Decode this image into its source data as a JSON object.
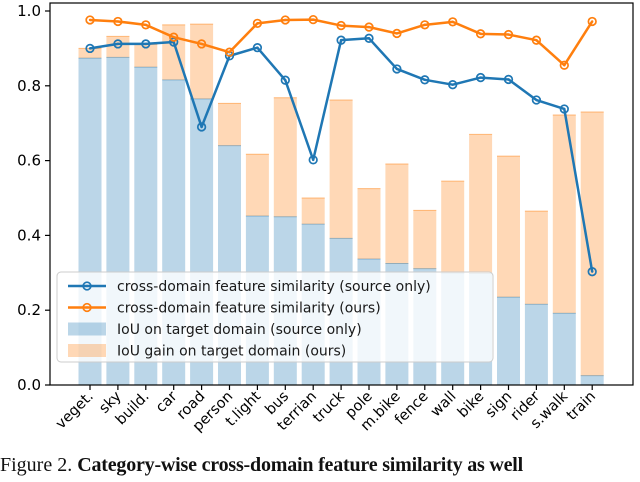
{
  "figure": {
    "caption_prefix": "Figure 2.",
    "caption_text": "Category-wise cross-domain feature similarity as well"
  },
  "chart_data": {
    "type": "line+stacked-bar",
    "title": "",
    "xlabel": "",
    "ylabel": "",
    "ylim": [
      0.0,
      1.02
    ],
    "yticks": [
      "0.0",
      "0.2",
      "0.4",
      "0.6",
      "0.8",
      "1.0"
    ],
    "grid": false,
    "legend_position": "center-left",
    "categories": [
      "veget.",
      "sky",
      "build.",
      "car",
      "road",
      "person",
      "t.light",
      "bus",
      "terrian",
      "truck",
      "pole",
      "m.bike",
      "fence",
      "wall",
      "bike",
      "sign",
      "rider",
      "s.walk",
      "train"
    ],
    "series": [
      {
        "name": "cross-domain feature similarity (source only)",
        "type": "line",
        "color": "#1f77b4",
        "values": [
          0.9,
          0.912,
          0.912,
          0.917,
          0.69,
          0.88,
          0.902,
          0.815,
          0.602,
          0.922,
          0.927,
          0.845,
          0.816,
          0.803,
          0.822,
          0.817,
          0.762,
          0.738,
          0.303
        ]
      },
      {
        "name": "cross-domain feature similarity (ours)",
        "type": "line",
        "color": "#ff7f0e",
        "values": [
          0.976,
          0.972,
          0.963,
          0.93,
          0.912,
          0.89,
          0.967,
          0.976,
          0.977,
          0.961,
          0.957,
          0.94,
          0.963,
          0.971,
          0.939,
          0.937,
          0.922,
          0.855,
          0.972
        ]
      },
      {
        "name": "IoU on target domain (source only)",
        "type": "bar",
        "color": "rgba(31,119,180,0.30)",
        "edge_color": "rgba(31,119,180,0.45)",
        "values": [
          0.874,
          0.876,
          0.85,
          0.816,
          0.765,
          0.64,
          0.452,
          0.45,
          0.43,
          0.392,
          0.337,
          0.325,
          0.311,
          0.299,
          0.298,
          0.235,
          0.216,
          0.192,
          0.025
        ]
      },
      {
        "name": "IoU gain on target domain (ours)",
        "type": "bar-stacked",
        "color": "rgba(255,127,14,0.30)",
        "edge_color": "rgba(255,127,14,0.50)",
        "values": [
          0.026,
          0.056,
          0.061,
          0.147,
          0.2,
          0.113,
          0.165,
          0.318,
          0.07,
          0.37,
          0.188,
          0.266,
          0.156,
          0.246,
          0.372,
          0.377,
          0.249,
          0.53,
          0.705
        ]
      }
    ]
  }
}
